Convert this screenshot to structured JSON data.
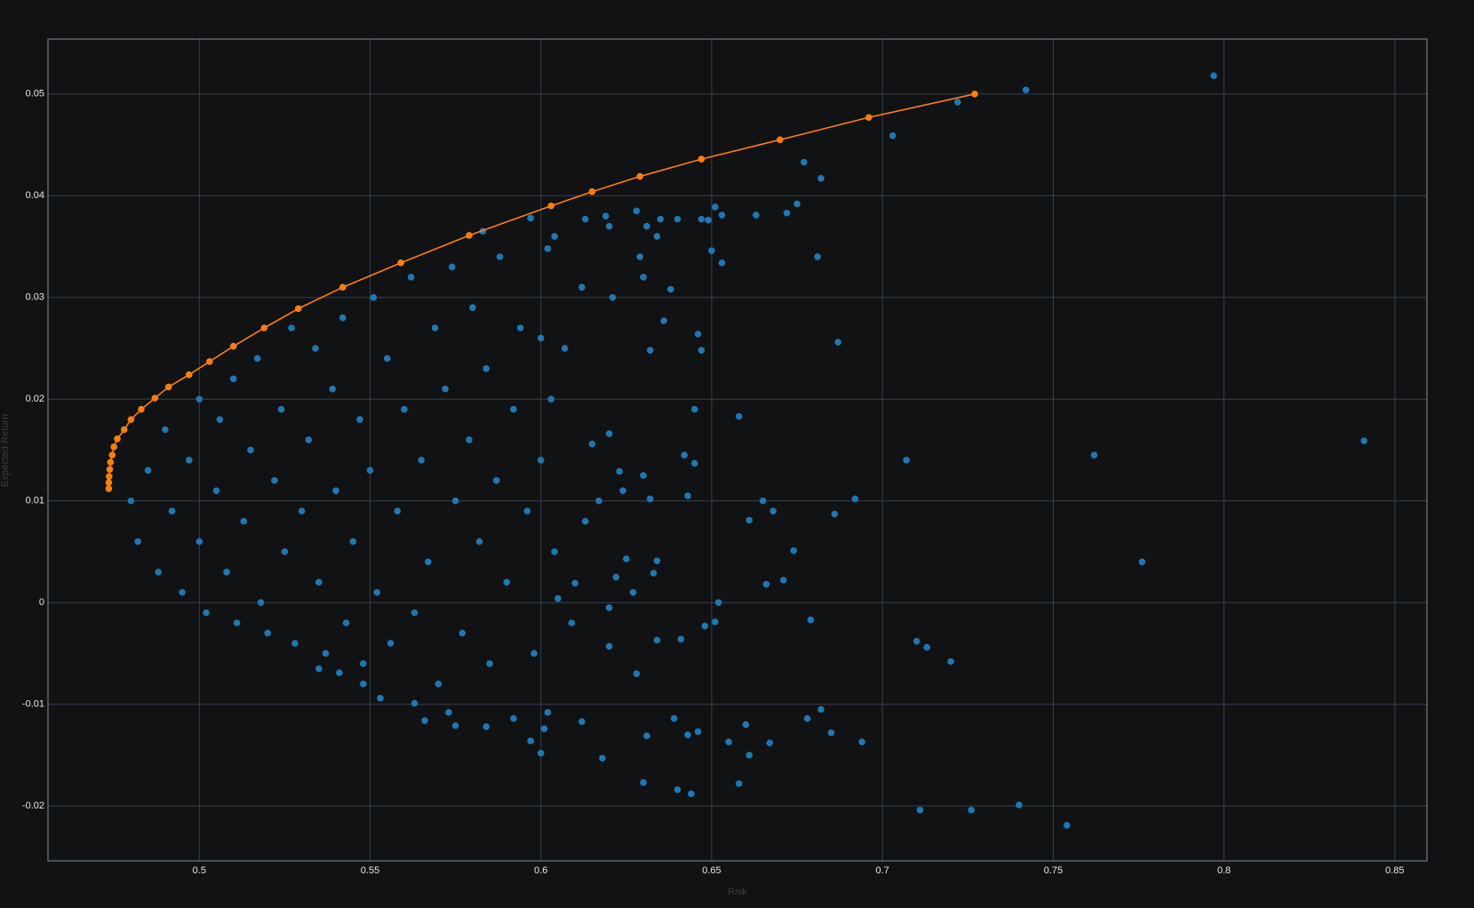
{
  "chart_data": {
    "type": "scatter",
    "xlabel": "Risk",
    "ylabel": "Expected Return",
    "xlim": [
      0.4557,
      0.8594
    ],
    "ylim": [
      -0.0254,
      0.0554
    ],
    "xticks": [
      0.5,
      0.55,
      0.6,
      0.65,
      0.7,
      0.75,
      0.8,
      0.85
    ],
    "yticks": [
      -0.02,
      -0.01,
      0,
      0.01,
      0.02,
      0.03,
      0.04,
      0.05
    ],
    "grid": true,
    "series": [
      {
        "color": "#1f77b4",
        "mode": "markers",
        "x": [
          0.797,
          0.742,
          0.722,
          0.703,
          0.841,
          0.762,
          0.776,
          0.707,
          0.754,
          0.74,
          0.726,
          0.711,
          0.72,
          0.713,
          0.71,
          0.694,
          0.685,
          0.682,
          0.678,
          0.679,
          0.677,
          0.682,
          0.681,
          0.687,
          0.692,
          0.686,
          0.674,
          0.671,
          0.666,
          0.668,
          0.661,
          0.665,
          0.658,
          0.675,
          0.672,
          0.663,
          0.653,
          0.651,
          0.649,
          0.647,
          0.64,
          0.635,
          0.628,
          0.631,
          0.634,
          0.65,
          0.653,
          0.629,
          0.63,
          0.638,
          0.636,
          0.632,
          0.646,
          0.647,
          0.645,
          0.642,
          0.645,
          0.643,
          0.632,
          0.63,
          0.623,
          0.62,
          0.615,
          0.619,
          0.644,
          0.64,
          0.63,
          0.658,
          0.661,
          0.655,
          0.667,
          0.66,
          0.646,
          0.643,
          0.639,
          0.631,
          0.618,
          0.6,
          0.597,
          0.601,
          0.602,
          0.612,
          0.592,
          0.584,
          0.573,
          0.575,
          0.566,
          0.563,
          0.553,
          0.548,
          0.541,
          0.535,
          0.651,
          0.648,
          0.641,
          0.634,
          0.628,
          0.62,
          0.62,
          0.605,
          0.61,
          0.622,
          0.633,
          0.625,
          0.634,
          0.652,
          0.48,
          0.482,
          0.485,
          0.488,
          0.49,
          0.492,
          0.495,
          0.497,
          0.5,
          0.5,
          0.502,
          0.505,
          0.506,
          0.508,
          0.51,
          0.511,
          0.513,
          0.515,
          0.517,
          0.518,
          0.52,
          0.522,
          0.524,
          0.525,
          0.527,
          0.528,
          0.53,
          0.532,
          0.534,
          0.535,
          0.537,
          0.539,
          0.54,
          0.542,
          0.543,
          0.545,
          0.547,
          0.548,
          0.55,
          0.551,
          0.552,
          0.555,
          0.556,
          0.558,
          0.56,
          0.562,
          0.563,
          0.565,
          0.567,
          0.569,
          0.57,
          0.572,
          0.574,
          0.575,
          0.577,
          0.579,
          0.58,
          0.582,
          0.584,
          0.585,
          0.587,
          0.588,
          0.59,
          0.592,
          0.594,
          0.596,
          0.598,
          0.6,
          0.6,
          0.603,
          0.604,
          0.607,
          0.609,
          0.612,
          0.613,
          0.617,
          0.621,
          0.624,
          0.627,
          0.583,
          0.597,
          0.604,
          0.602,
          0.613,
          0.62
        ],
        "values": [
          0.0518,
          0.0504,
          0.0492,
          0.0459,
          0.0159,
          0.0145,
          0.004,
          0.014,
          -0.0219,
          -0.0199,
          -0.0204,
          -0.0204,
          -0.0058,
          -0.0044,
          -0.0038,
          -0.0137,
          -0.0128,
          -0.0105,
          -0.0114,
          -0.0017,
          0.0433,
          0.0417,
          0.034,
          0.0256,
          0.0102,
          0.0087,
          0.0051,
          0.0022,
          0.0018,
          0.009,
          0.0081,
          0.01,
          0.0183,
          0.0392,
          0.0383,
          0.0381,
          0.0381,
          0.0389,
          0.0376,
          0.0377,
          0.0377,
          0.0377,
          0.0385,
          0.037,
          0.036,
          0.0346,
          0.0334,
          0.034,
          0.032,
          0.0308,
          0.0277,
          0.0248,
          0.0264,
          0.0248,
          0.019,
          0.0145,
          0.0137,
          0.0105,
          0.0102,
          0.0125,
          0.0129,
          0.0166,
          0.0156,
          0.038,
          -0.0188,
          -0.0184,
          -0.0177,
          -0.0178,
          -0.015,
          -0.0137,
          -0.0138,
          -0.012,
          -0.0127,
          -0.013,
          -0.0114,
          -0.0131,
          -0.0153,
          -0.0148,
          -0.0136,
          -0.0124,
          -0.0108,
          -0.0117,
          -0.0114,
          -0.0122,
          -0.0108,
          -0.0121,
          -0.0116,
          -0.0099,
          -0.0094,
          -0.008,
          -0.0069,
          -0.0065,
          -0.0019,
          -0.0023,
          -0.0036,
          -0.0037,
          -0.007,
          -0.0043,
          -0.0005,
          0.0004,
          0.0019,
          0.0025,
          0.0029,
          0.0043,
          0.0041,
          0.0,
          0.01,
          0.006,
          0.013,
          0.003,
          0.017,
          0.009,
          0.001,
          0.014,
          0.02,
          0.006,
          -0.001,
          0.011,
          0.018,
          0.003,
          0.022,
          -0.002,
          0.008,
          0.015,
          0.024,
          0.0,
          -0.003,
          0.012,
          0.019,
          0.005,
          0.027,
          -0.004,
          0.009,
          0.016,
          0.025,
          0.002,
          -0.005,
          0.021,
          0.011,
          0.028,
          -0.002,
          0.006,
          0.018,
          -0.006,
          0.013,
          0.03,
          0.001,
          0.024,
          -0.004,
          0.009,
          0.019,
          0.032,
          -0.001,
          0.014,
          0.004,
          0.027,
          -0.008,
          0.021,
          0.033,
          0.01,
          -0.003,
          0.016,
          0.029,
          0.006,
          0.023,
          -0.006,
          0.012,
          0.034,
          0.002,
          0.019,
          0.027,
          0.009,
          -0.005,
          0.014,
          0.026,
          0.02,
          0.005,
          0.025,
          -0.002,
          0.031,
          0.008,
          0.01,
          0.03,
          0.011,
          0.001,
          0.0365,
          0.0378,
          0.036,
          0.0348,
          0.0377,
          0.037
        ]
      },
      {
        "color": "#ff7f0e",
        "mode": "lines+markers",
        "x": [
          0.727,
          0.696,
          0.67,
          0.647,
          0.629,
          0.615,
          0.603,
          0.579,
          0.559,
          0.542,
          0.529,
          0.519,
          0.51,
          0.503,
          0.497,
          0.491,
          0.487,
          0.483,
          0.48,
          0.478,
          0.476,
          0.475,
          0.4745,
          0.474,
          0.4738,
          0.4736,
          0.4735,
          0.4735
        ],
        "values": [
          0.05,
          0.0477,
          0.0455,
          0.0436,
          0.0419,
          0.0404,
          0.039,
          0.0361,
          0.0334,
          0.031,
          0.0289,
          0.027,
          0.0252,
          0.0237,
          0.0224,
          0.0212,
          0.0201,
          0.019,
          0.018,
          0.017,
          0.0161,
          0.0153,
          0.0145,
          0.0138,
          0.0131,
          0.0124,
          0.0118,
          0.0112
        ]
      }
    ]
  }
}
